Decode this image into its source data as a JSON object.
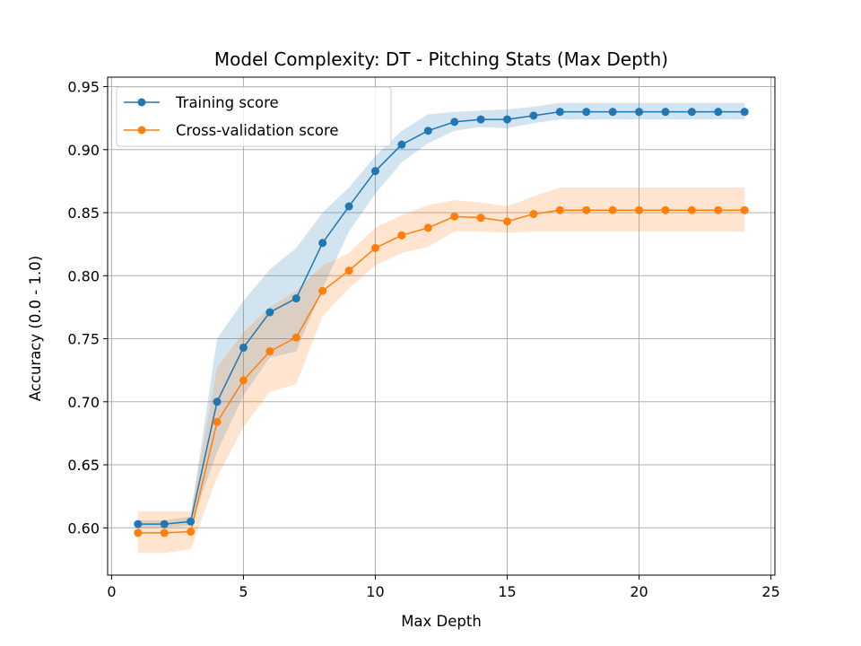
{
  "chart_data": {
    "type": "line",
    "title": "Model Complexity: DT - Pitching Stats (Max Depth)",
    "xlabel": "Max Depth",
    "ylabel": "Accuracy (0.0 - 1.0)",
    "xlim": [
      -0.15,
      25.15
    ],
    "ylim": [
      0.5625,
      0.9575
    ],
    "xticks": [
      0,
      5,
      10,
      15,
      20,
      25
    ],
    "yticks": [
      0.6,
      0.65,
      0.7,
      0.75,
      0.8,
      0.85,
      0.9,
      0.95
    ],
    "grid": true,
    "legend_position": "upper-left",
    "x": [
      1,
      2,
      3,
      4,
      5,
      6,
      7,
      8,
      9,
      10,
      11,
      12,
      13,
      14,
      15,
      16,
      17,
      18,
      19,
      20,
      21,
      22,
      23,
      24
    ],
    "series": [
      {
        "name": "Training score",
        "color": "#1f77b4",
        "band_color": "#1f77b4",
        "values": [
          0.603,
          0.603,
          0.605,
          0.7,
          0.743,
          0.771,
          0.782,
          0.826,
          0.855,
          0.883,
          0.904,
          0.915,
          0.922,
          0.924,
          0.924,
          0.927,
          0.93,
          0.93,
          0.93,
          0.93,
          0.93,
          0.93,
          0.93,
          0.93
        ],
        "lower": [
          0.6,
          0.6,
          0.602,
          0.66,
          0.705,
          0.735,
          0.74,
          0.79,
          0.835,
          0.865,
          0.89,
          0.905,
          0.915,
          0.918,
          0.917,
          0.921,
          0.924,
          0.924,
          0.924,
          0.924,
          0.924,
          0.924,
          0.924,
          0.924
        ],
        "upper": [
          0.606,
          0.606,
          0.609,
          0.75,
          0.78,
          0.805,
          0.822,
          0.85,
          0.87,
          0.895,
          0.915,
          0.928,
          0.93,
          0.931,
          0.932,
          0.934,
          0.937,
          0.937,
          0.937,
          0.937,
          0.937,
          0.937,
          0.937,
          0.937
        ]
      },
      {
        "name": "Cross-validation score",
        "color": "#ff7f0e",
        "band_color": "#ff7f0e",
        "values": [
          0.596,
          0.596,
          0.597,
          0.684,
          0.717,
          0.74,
          0.751,
          0.788,
          0.804,
          0.822,
          0.832,
          0.838,
          0.847,
          0.846,
          0.843,
          0.849,
          0.852,
          0.852,
          0.852,
          0.852,
          0.852,
          0.852,
          0.852,
          0.852
        ],
        "lower": [
          0.58,
          0.58,
          0.583,
          0.64,
          0.68,
          0.708,
          0.714,
          0.768,
          0.79,
          0.808,
          0.818,
          0.823,
          0.835,
          0.835,
          0.834,
          0.835,
          0.835,
          0.835,
          0.835,
          0.835,
          0.835,
          0.835,
          0.835,
          0.835
        ],
        "upper": [
          0.613,
          0.613,
          0.613,
          0.727,
          0.755,
          0.775,
          0.788,
          0.808,
          0.818,
          0.838,
          0.848,
          0.856,
          0.86,
          0.858,
          0.855,
          0.863,
          0.87,
          0.87,
          0.87,
          0.87,
          0.87,
          0.87,
          0.87,
          0.87
        ]
      }
    ]
  }
}
